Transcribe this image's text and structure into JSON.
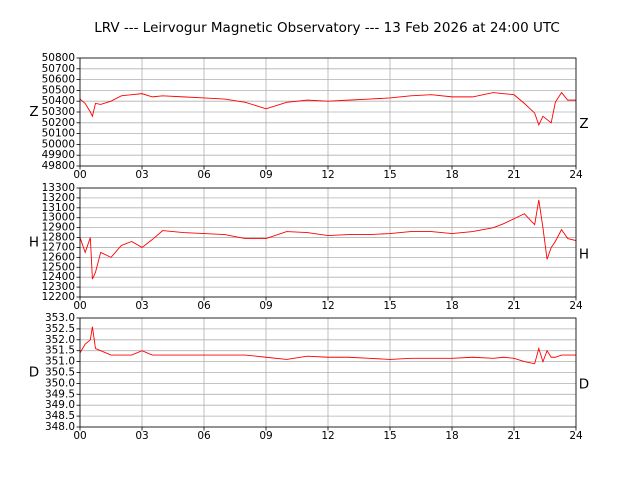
{
  "title": "LRV --- Leirvogur Magnetic Observatory --- 13 Feb 2026 at 24:00 UTC",
  "chart_data": [
    {
      "type": "line",
      "ylabel": "Z",
      "color": "#ff0000",
      "grid": true,
      "x": [
        0,
        0.25,
        0.5,
        0.6,
        0.75,
        1,
        1.5,
        2,
        2.5,
        3,
        3.5,
        4,
        5,
        6,
        7,
        8,
        9,
        10,
        11,
        12,
        13,
        14,
        15,
        16,
        17,
        18,
        19,
        20,
        20.5,
        21,
        21.5,
        22,
        22.2,
        22.4,
        22.6,
        22.8,
        23,
        23.3,
        23.6,
        24
      ],
      "values": [
        50420,
        50380,
        50300,
        50260,
        50380,
        50370,
        50400,
        50450,
        50460,
        50470,
        50440,
        50450,
        50440,
        50430,
        50420,
        50390,
        50330,
        50390,
        50410,
        50400,
        50410,
        50420,
        50430,
        50450,
        50460,
        50440,
        50440,
        50480,
        50470,
        50460,
        50380,
        50290,
        50180,
        50260,
        50230,
        50200,
        50390,
        50480,
        50410,
        50410
      ],
      "xlim": [
        0,
        24
      ],
      "xticks": [
        {
          "value": 0,
          "label": "00"
        },
        {
          "value": 3,
          "label": "03"
        },
        {
          "value": 6,
          "label": "06"
        },
        {
          "value": 9,
          "label": "09"
        },
        {
          "value": 12,
          "label": "12"
        },
        {
          "value": 15,
          "label": "15"
        },
        {
          "value": 18,
          "label": "18"
        },
        {
          "value": 21,
          "label": "21"
        },
        {
          "value": 24,
          "label": "24"
        }
      ],
      "ylim": [
        49800,
        50800
      ],
      "yticks": [
        49800,
        49900,
        50000,
        50100,
        50200,
        50300,
        50400,
        50500,
        50600,
        50700,
        50800
      ]
    },
    {
      "type": "line",
      "ylabel": "H",
      "color": "#ff0000",
      "grid": true,
      "x": [
        0,
        0.25,
        0.5,
        0.6,
        0.75,
        1,
        1.5,
        2,
        2.5,
        3,
        3.5,
        4,
        5,
        6,
        7,
        8,
        9,
        10,
        11,
        12,
        13,
        14,
        15,
        16,
        17,
        18,
        19,
        20,
        20.5,
        21,
        21.5,
        22,
        22.2,
        22.4,
        22.6,
        22.8,
        23,
        23.3,
        23.6,
        24
      ],
      "values": [
        12800,
        12650,
        12800,
        12380,
        12450,
        12650,
        12600,
        12720,
        12760,
        12700,
        12780,
        12870,
        12850,
        12840,
        12830,
        12790,
        12790,
        12860,
        12850,
        12820,
        12830,
        12830,
        12840,
        12860,
        12860,
        12840,
        12860,
        12900,
        12940,
        12990,
        13040,
        12930,
        13180,
        12900,
        12580,
        12700,
        12760,
        12880,
        12790,
        12770
      ],
      "xlim": [
        0,
        24
      ],
      "xticks": [
        {
          "value": 0,
          "label": "00"
        },
        {
          "value": 3,
          "label": "03"
        },
        {
          "value": 6,
          "label": "06"
        },
        {
          "value": 9,
          "label": "09"
        },
        {
          "value": 12,
          "label": "12"
        },
        {
          "value": 15,
          "label": "15"
        },
        {
          "value": 18,
          "label": "18"
        },
        {
          "value": 21,
          "label": "21"
        },
        {
          "value": 24,
          "label": "24"
        }
      ],
      "ylim": [
        12200,
        13300
      ],
      "yticks": [
        12200,
        12300,
        12400,
        12500,
        12600,
        12700,
        12800,
        12900,
        13000,
        13100,
        13200,
        13300
      ]
    },
    {
      "type": "line",
      "ylabel": "D",
      "color": "#ff0000",
      "grid": true,
      "x": [
        0,
        0.25,
        0.5,
        0.6,
        0.75,
        1,
        1.5,
        2,
        2.5,
        3,
        3.5,
        4,
        5,
        6,
        7,
        8,
        9,
        10,
        11,
        12,
        13,
        14,
        15,
        16,
        17,
        18,
        19,
        20,
        20.5,
        21,
        21.5,
        22,
        22.2,
        22.4,
        22.6,
        22.8,
        23,
        23.3,
        23.6,
        24
      ],
      "values": [
        351.4,
        351.8,
        352.0,
        352.6,
        351.6,
        351.5,
        351.3,
        351.3,
        351.3,
        351.5,
        351.3,
        351.3,
        351.3,
        351.3,
        351.3,
        351.3,
        351.2,
        351.1,
        351.25,
        351.2,
        351.2,
        351.15,
        351.1,
        351.15,
        351.15,
        351.15,
        351.2,
        351.15,
        351.2,
        351.15,
        351.0,
        350.9,
        351.6,
        351.0,
        351.5,
        351.2,
        351.2,
        351.3,
        351.3,
        351.3
      ],
      "xlim": [
        0,
        24
      ],
      "xticks": [
        {
          "value": 0,
          "label": "00"
        },
        {
          "value": 3,
          "label": "03"
        },
        {
          "value": 6,
          "label": "06"
        },
        {
          "value": 9,
          "label": "09"
        },
        {
          "value": 12,
          "label": "12"
        },
        {
          "value": 15,
          "label": "15"
        },
        {
          "value": 18,
          "label": "18"
        },
        {
          "value": 21,
          "label": "21"
        },
        {
          "value": 24,
          "label": "24"
        }
      ],
      "ylim": [
        348,
        353
      ],
      "yticks": [
        {
          "value": 348,
          "label": "348.0"
        },
        348.5,
        {
          "value": 349,
          "label": "349.0"
        },
        349.5,
        {
          "value": 350,
          "label": "350.0"
        },
        350.5,
        {
          "value": 351,
          "label": "351.0"
        },
        351.5,
        {
          "value": 352,
          "label": "352.0"
        },
        352.5,
        {
          "value": 353,
          "label": "353.0"
        }
      ]
    }
  ]
}
